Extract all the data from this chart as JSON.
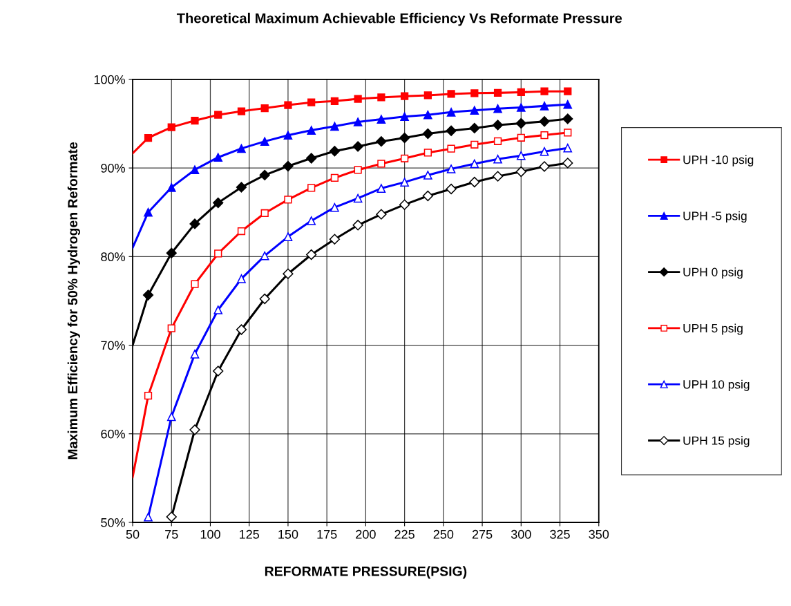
{
  "chart_data": {
    "type": "line",
    "title": "Theoretical Maximum Achievable Efficiency Vs Reformate Pressure",
    "xlabel": "REFORMATE PRESSURE(PSIG)",
    "ylabel": "Maximum Efficiency for 50% Hydrogen Reformate",
    "x": [
      50,
      60,
      75,
      90,
      105,
      120,
      135,
      150,
      165,
      180,
      195,
      210,
      225,
      240,
      255,
      270,
      285,
      300,
      315,
      330
    ],
    "series": [
      {
        "name": "UPH -10 psig",
        "color": "#ff0000",
        "marker": "square",
        "values": [
          91.65,
          93.4,
          94.6,
          95.35,
          96.0,
          96.4,
          96.75,
          97.1,
          97.4,
          97.55,
          97.8,
          97.97,
          98.1,
          98.2,
          98.36,
          98.45,
          98.48,
          98.55,
          98.65,
          98.65
        ]
      },
      {
        "name": "UPH -5 psig",
        "color": "#0000ff",
        "marker": "triangle",
        "values": [
          81.0,
          85.0,
          87.8,
          89.8,
          91.2,
          92.2,
          93.0,
          93.7,
          94.25,
          94.7,
          95.2,
          95.5,
          95.8,
          96.0,
          96.3,
          96.5,
          96.7,
          96.83,
          97.0,
          97.17
        ]
      },
      {
        "name": "UPH 0 psig",
        "color": "#000000",
        "marker": "diamond",
        "values": [
          70.0,
          75.66,
          80.4,
          83.7,
          86.07,
          87.83,
          89.2,
          90.2,
          91.1,
          91.9,
          92.43,
          93.0,
          93.4,
          93.87,
          94.2,
          94.5,
          94.85,
          95.04,
          95.25,
          95.55
        ]
      },
      {
        "name": "UPH 5 psig",
        "color": "#ff0000",
        "marker": "square",
        "values": [
          55.1,
          64.3,
          71.9,
          76.9,
          80.34,
          82.87,
          84.9,
          86.43,
          87.75,
          88.88,
          89.78,
          90.48,
          91.08,
          91.73,
          92.18,
          92.64,
          93.03,
          93.42,
          93.71,
          94.0
        ]
      },
      {
        "name": "UPH 10 psig",
        "color": "#0000ff",
        "marker": "triangle",
        "values": [
          null,
          50.6,
          61.93,
          69.0,
          73.98,
          77.5,
          80.09,
          82.24,
          84.04,
          85.55,
          86.58,
          87.7,
          88.4,
          89.19,
          89.89,
          90.48,
          91.0,
          91.4,
          91.86,
          92.25
        ]
      },
      {
        "name": "UPH 15 psig",
        "color": "#000000",
        "marker": "diamond",
        "values": [
          null,
          null,
          50.62,
          60.45,
          67.08,
          71.76,
          75.23,
          78.06,
          80.22,
          81.96,
          83.55,
          84.77,
          85.86,
          86.85,
          87.63,
          88.41,
          89.06,
          89.58,
          90.17,
          90.56
        ]
      }
    ],
    "xlim": [
      50,
      350
    ],
    "xticks": [
      50,
      75,
      100,
      125,
      150,
      175,
      200,
      225,
      250,
      275,
      300,
      325,
      350
    ],
    "ylim": [
      50,
      100
    ],
    "yticks": [
      {
        "value": 50,
        "label": "50%"
      },
      {
        "value": 60,
        "label": "60%"
      },
      {
        "value": 70,
        "label": "70%"
      },
      {
        "value": 80,
        "label": "80%"
      },
      {
        "value": 90,
        "label": "90%"
      },
      {
        "value": 100,
        "label": "100%"
      }
    ],
    "grid": true,
    "legend": "right",
    "line_style": "solid"
  }
}
